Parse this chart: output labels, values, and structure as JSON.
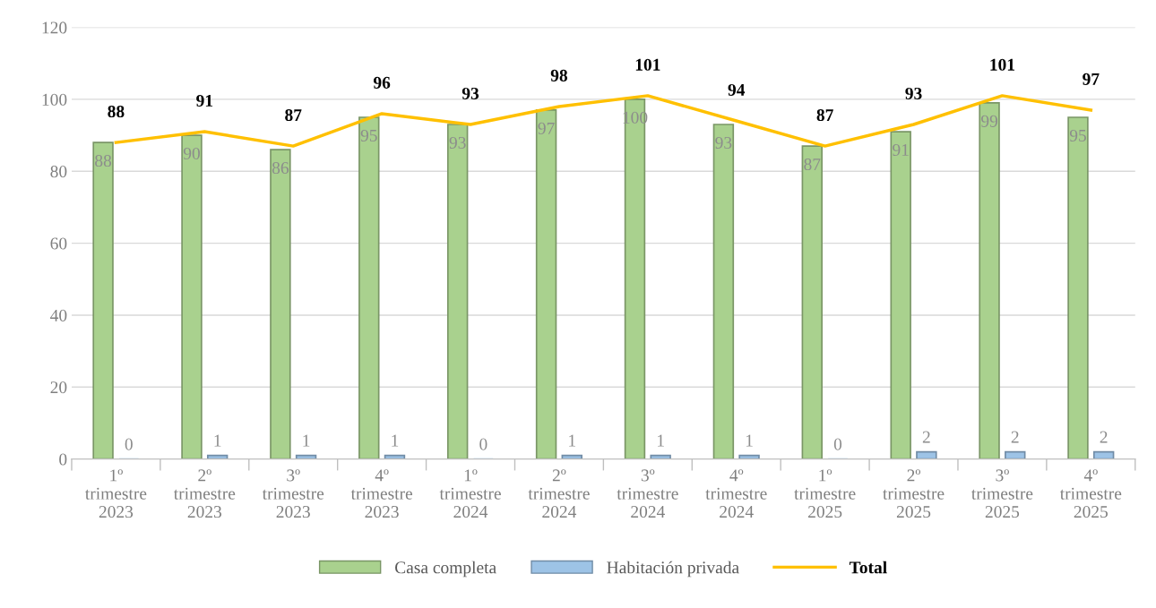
{
  "chart_data": {
    "type": "bar",
    "categories": [
      "1º\ntrimestre\n2023",
      "2º\ntrimestre\n2023",
      "3º\ntrimestre\n2023",
      "4º\ntrimestre\n2023",
      "1º\ntrimestre\n2024",
      "2º\ntrimestre\n2024",
      "3º\ntrimestre\n2024",
      "4º\ntrimestre\n2024",
      "1º\ntrimestre\n2025",
      "2º\ntrimestre\n2025",
      "3º\ntrimestre\n2025",
      "4º\ntrimestre\n2025"
    ],
    "series": [
      {
        "name": "Casa completa",
        "color": "#a9d18e",
        "values": [
          88,
          90,
          86,
          95,
          93,
          97,
          100,
          93,
          87,
          91,
          99,
          95
        ]
      },
      {
        "name": "Habitación privada",
        "color": "#9dc3e6",
        "values": [
          0,
          1,
          1,
          1,
          0,
          1,
          1,
          1,
          0,
          2,
          2,
          2
        ]
      },
      {
        "name": "Total",
        "type": "line",
        "color": "#ffc000",
        "values": [
          88,
          91,
          87,
          96,
          93,
          98,
          101,
          94,
          87,
          93,
          101,
          97
        ]
      }
    ],
    "ylim": [
      0,
      120
    ],
    "yticks": [
      0,
      20,
      40,
      60,
      80,
      100,
      120
    ],
    "grid": "y",
    "legend": "bottom",
    "data_labels": true,
    "marker": "none",
    "line_style": "solid"
  }
}
